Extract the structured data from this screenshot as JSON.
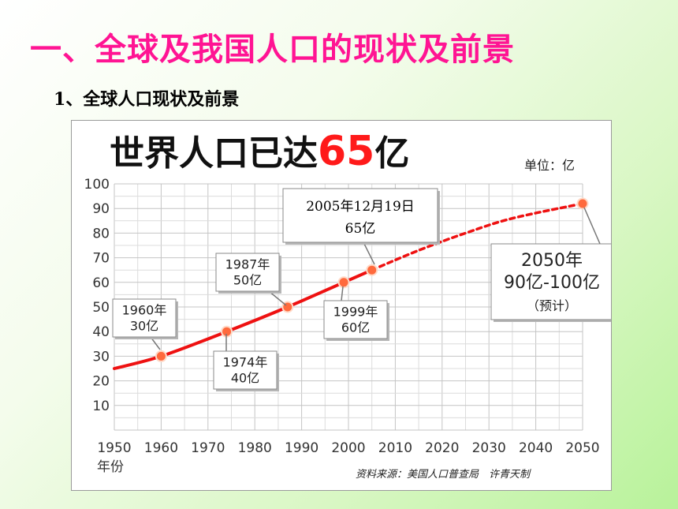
{
  "slide": {
    "title": "一、全球及我国人口的现状及前景",
    "subtitle": "1、全球人口现状及前景"
  },
  "chart_data": {
    "type": "line",
    "title_main": "世界人口已达",
    "title_number": "65",
    "title_unit": "亿",
    "unit_label": "单位：亿",
    "xlabel": "年份",
    "source": "资料来源：美国人口普查局　许青天制",
    "xlim": [
      1950,
      2050
    ],
    "ylim": [
      0,
      100
    ],
    "x_ticks": [
      "1950",
      "1960",
      "1970",
      "1980",
      "1990",
      "2000",
      "2010",
      "2020",
      "2030",
      "2040",
      "2050"
    ],
    "y_ticks": [
      "10",
      "20",
      "30",
      "40",
      "50",
      "60",
      "70",
      "80",
      "90",
      "100"
    ],
    "grid": true,
    "series": [
      {
        "style": "solid",
        "color": "#ee1111",
        "x": [
          1950,
          1960,
          1974,
          1987,
          1999,
          2005
        ],
        "y": [
          25,
          30,
          40,
          50,
          60,
          65
        ]
      },
      {
        "style": "dashed",
        "color": "#ee1111",
        "x": [
          2005,
          2015,
          2025,
          2035,
          2050
        ],
        "y": [
          65,
          73,
          80,
          86,
          92
        ]
      }
    ],
    "markers": [
      {
        "x": 1960,
        "y": 30
      },
      {
        "x": 1974,
        "y": 40
      },
      {
        "x": 1987,
        "y": 50
      },
      {
        "x": 1999,
        "y": 60
      },
      {
        "x": 2005,
        "y": 65
      },
      {
        "x": 2050,
        "y": 92
      }
    ],
    "annotations": [
      {
        "id": "1960",
        "lines": [
          "1960年",
          "30亿"
        ]
      },
      {
        "id": "1974",
        "lines": [
          "1974年",
          "40亿"
        ]
      },
      {
        "id": "1987",
        "lines": [
          "1987年",
          "50亿"
        ]
      },
      {
        "id": "1999",
        "lines": [
          "1999年",
          "60亿"
        ]
      },
      {
        "id": "2005",
        "lines": [
          "2005年12月19日",
          "65亿"
        ]
      },
      {
        "id": "2050",
        "lines": [
          "2050年",
          "90亿-100亿",
          "（预计）"
        ]
      }
    ]
  }
}
